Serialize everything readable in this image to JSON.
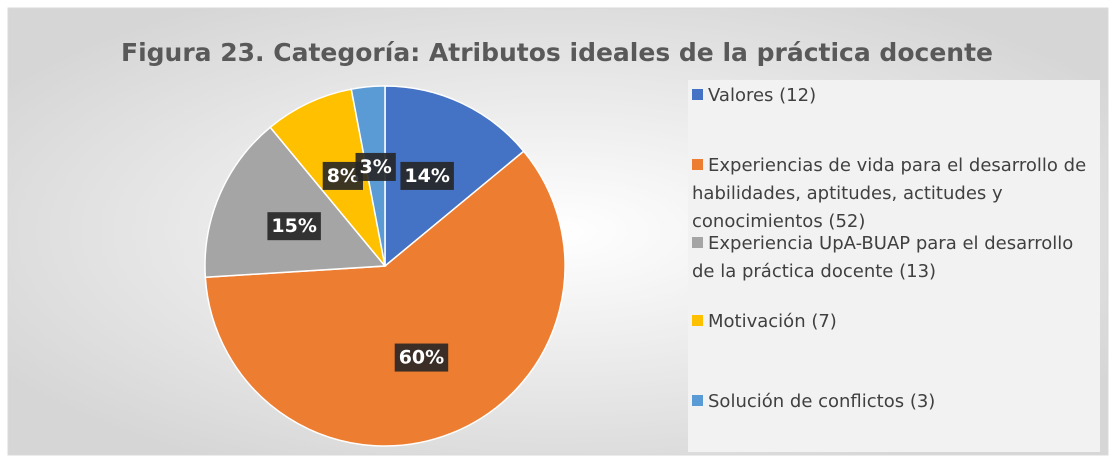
{
  "chart_data": {
    "type": "pie",
    "title": "Figura 23. Categoría: Atributos ideales de la práctica docente",
    "categories": [
      "Valores (12)",
      "Experiencias de vida para el desarrollo de habilidades, aptitudes, actitudes y conocimientos (52)",
      "Experiencia UpA-BUAP para el desarrollo de la práctica docente (13)",
      "Motivación (7)",
      "Solución de conflictos (3)"
    ],
    "values": [
      14,
      60,
      15,
      8,
      3
    ],
    "value_labels": [
      "14%",
      "60%",
      "15%",
      "8%",
      "3%"
    ],
    "colors": [
      "#4472c4",
      "#ed7d31",
      "#a5a5a5",
      "#ffc000",
      "#5b9bd5"
    ],
    "legend": "right"
  }
}
